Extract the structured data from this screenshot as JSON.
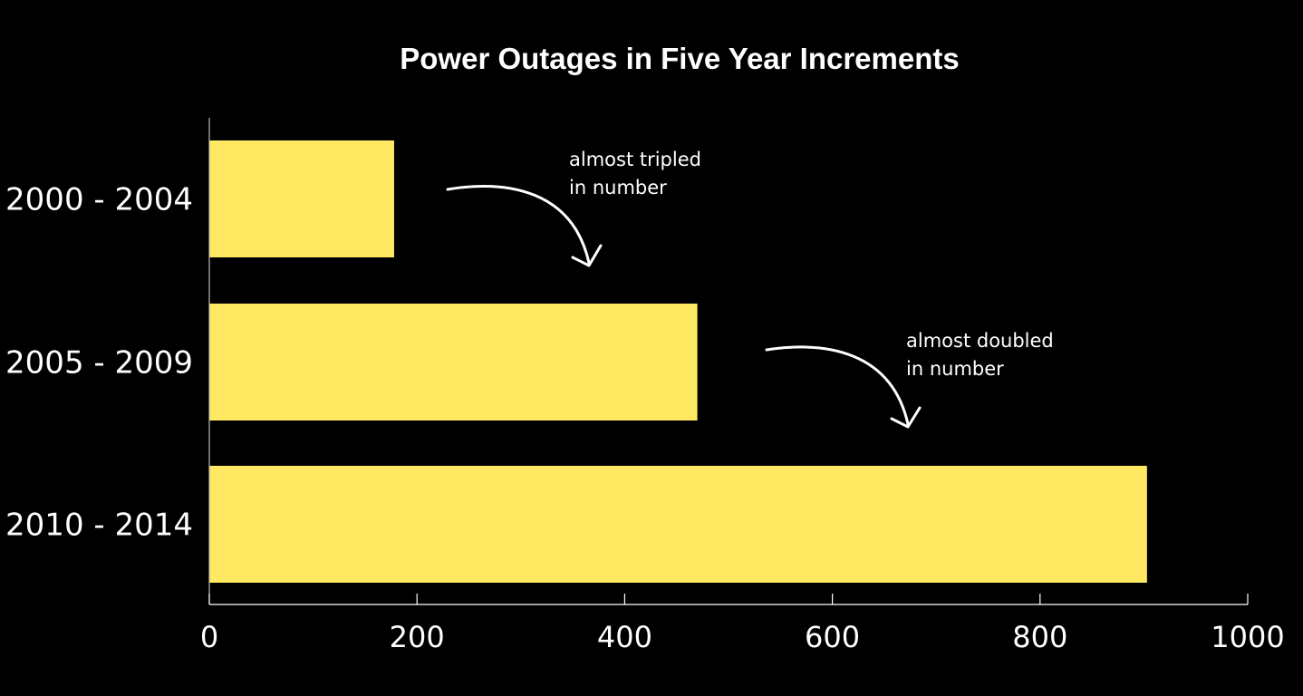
{
  "chart_data": {
    "type": "bar",
    "orientation": "horizontal",
    "title": "Power Outages in Five Year Increments",
    "categories": [
      "2000 - 2004",
      "2005 - 2009",
      "2010 - 2014"
    ],
    "values": [
      178,
      470,
      903
    ],
    "xlim": [
      0,
      1000
    ],
    "xticks": [
      0,
      200,
      400,
      600,
      800,
      1000
    ],
    "xlabel": "",
    "ylabel": "",
    "grid": false,
    "annotations": [
      {
        "lines": [
          "almost tripled",
          "in number"
        ]
      },
      {
        "lines": [
          "almost doubled",
          "in number"
        ]
      }
    ]
  },
  "colors": {
    "background": "#000000",
    "bar": "#FFE963",
    "text": "#FFFFFF",
    "axis": "#FFFFFF"
  }
}
